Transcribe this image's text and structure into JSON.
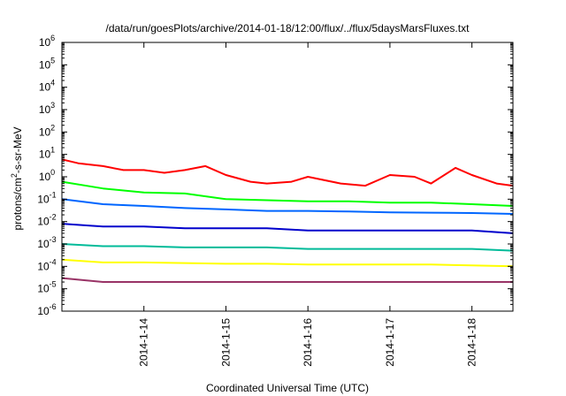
{
  "chart_data": {
    "type": "line",
    "title": "/data/run/goesPlots/archive/2014-01-18/12:00/flux/../flux/5daysMarsFluxes.txt",
    "xlabel": "Coordinated Universal Time (UTC)",
    "ylabel_main": "protons/cm",
    "ylabel_sup": "2",
    "ylabel_rest": "-s-sr-MeV",
    "y_scale": "log",
    "ylim_exponents": [
      -6,
      6
    ],
    "y_tick_labels": [
      {
        "base": "10",
        "exp": "-6"
      },
      {
        "base": "10",
        "exp": "-5"
      },
      {
        "base": "10",
        "exp": "-4"
      },
      {
        "base": "10",
        "exp": "-3"
      },
      {
        "base": "10",
        "exp": "-2"
      },
      {
        "base": "10",
        "exp": "-1"
      },
      {
        "base": "10",
        "exp": "0"
      },
      {
        "base": "10",
        "exp": "1"
      },
      {
        "base": "10",
        "exp": "2"
      },
      {
        "base": "10",
        "exp": "3"
      },
      {
        "base": "10",
        "exp": "4"
      },
      {
        "base": "10",
        "exp": "5"
      },
      {
        "base": "10",
        "exp": "6"
      }
    ],
    "xlim_days": [
      "2014-01-13 00:00",
      "2014-01-18 12:00"
    ],
    "x_tick_labels": [
      "2014-1-14",
      "2014-1-15",
      "2014-1-16",
      "2014-1-17",
      "2014-1-18"
    ],
    "grid": false,
    "legend": "none",
    "series": [
      {
        "color": "#ff0000",
        "x": [
          "2014-01-13",
          "2014-01-13.2",
          "2014-01-13.5",
          "2014-01-13.75",
          "2014-01-14",
          "2014-01-14.25",
          "2014-01-14.5",
          "2014-01-14.75",
          "2014-01-15",
          "2014-01-15.3",
          "2014-01-15.5",
          "2014-01-15.8",
          "2014-01-16",
          "2014-01-16.4",
          "2014-01-16.7",
          "2014-01-17",
          "2014-01-17.3",
          "2014-01-17.5",
          "2014-01-17.8",
          "2014-01-18",
          "2014-01-18.3",
          "2014-01-18.5"
        ],
        "values": [
          6,
          4,
          3,
          2,
          2,
          1.5,
          2,
          3,
          1.2,
          0.6,
          0.5,
          0.6,
          1,
          0.5,
          0.4,
          1.2,
          1,
          0.5,
          2.5,
          1.2,
          0.5,
          0.4
        ]
      },
      {
        "color": "#00ff00",
        "x": [
          "2014-01-13",
          "2014-01-13.5",
          "2014-01-14",
          "2014-01-14.5",
          "2014-01-15",
          "2014-01-15.5",
          "2014-01-16",
          "2014-01-16.5",
          "2014-01-17",
          "2014-01-17.5",
          "2014-01-18",
          "2014-01-18.5"
        ],
        "values": [
          0.6,
          0.3,
          0.2,
          0.18,
          0.1,
          0.09,
          0.08,
          0.08,
          0.07,
          0.07,
          0.06,
          0.05
        ]
      },
      {
        "color": "#0066ff",
        "x": [
          "2014-01-13",
          "2014-01-13.5",
          "2014-01-14",
          "2014-01-14.5",
          "2014-01-15",
          "2014-01-15.5",
          "2014-01-16",
          "2014-01-16.5",
          "2014-01-17",
          "2014-01-17.5",
          "2014-01-18",
          "2014-01-18.5"
        ],
        "values": [
          0.1,
          0.06,
          0.05,
          0.04,
          0.035,
          0.03,
          0.03,
          0.028,
          0.026,
          0.025,
          0.024,
          0.022
        ]
      },
      {
        "color": "#0000cc",
        "x": [
          "2014-01-13",
          "2014-01-13.5",
          "2014-01-14",
          "2014-01-14.5",
          "2014-01-15",
          "2014-01-15.5",
          "2014-01-16",
          "2014-01-16.5",
          "2014-01-17",
          "2014-01-17.5",
          "2014-01-18",
          "2014-01-18.5"
        ],
        "values": [
          0.008,
          0.006,
          0.006,
          0.005,
          0.005,
          0.005,
          0.004,
          0.004,
          0.004,
          0.004,
          0.004,
          0.003
        ]
      },
      {
        "color": "#00bb99",
        "x": [
          "2014-01-13",
          "2014-01-13.5",
          "2014-01-14",
          "2014-01-14.5",
          "2014-01-15",
          "2014-01-15.5",
          "2014-01-16",
          "2014-01-16.5",
          "2014-01-17",
          "2014-01-17.5",
          "2014-01-18",
          "2014-01-18.5"
        ],
        "values": [
          0.001,
          0.0008,
          0.0008,
          0.0007,
          0.0007,
          0.0007,
          0.0006,
          0.0006,
          0.0006,
          0.0006,
          0.0006,
          0.0005
        ]
      },
      {
        "color": "#ffff00",
        "x": [
          "2014-01-13",
          "2014-01-13.5",
          "2014-01-14",
          "2014-01-14.5",
          "2014-01-15",
          "2014-01-15.5",
          "2014-01-16",
          "2014-01-16.5",
          "2014-01-17",
          "2014-01-17.5",
          "2014-01-18",
          "2014-01-18.5"
        ],
        "values": [
          0.0002,
          0.00015,
          0.00015,
          0.00014,
          0.00013,
          0.00013,
          0.00012,
          0.00012,
          0.00012,
          0.00012,
          0.00011,
          0.0001
        ]
      },
      {
        "color": "#993366",
        "x": [
          "2014-01-13",
          "2014-01-13.5",
          "2014-01-14",
          "2014-01-14.5",
          "2014-01-15",
          "2014-01-15.5",
          "2014-01-16",
          "2014-01-16.5",
          "2014-01-17",
          "2014-01-17.5",
          "2014-01-18",
          "2014-01-18.5"
        ],
        "values": [
          3e-05,
          2e-05,
          2e-05,
          2e-05,
          2e-05,
          2e-05,
          2e-05,
          2e-05,
          2e-05,
          2e-05,
          2e-05,
          2e-05
        ]
      }
    ]
  }
}
